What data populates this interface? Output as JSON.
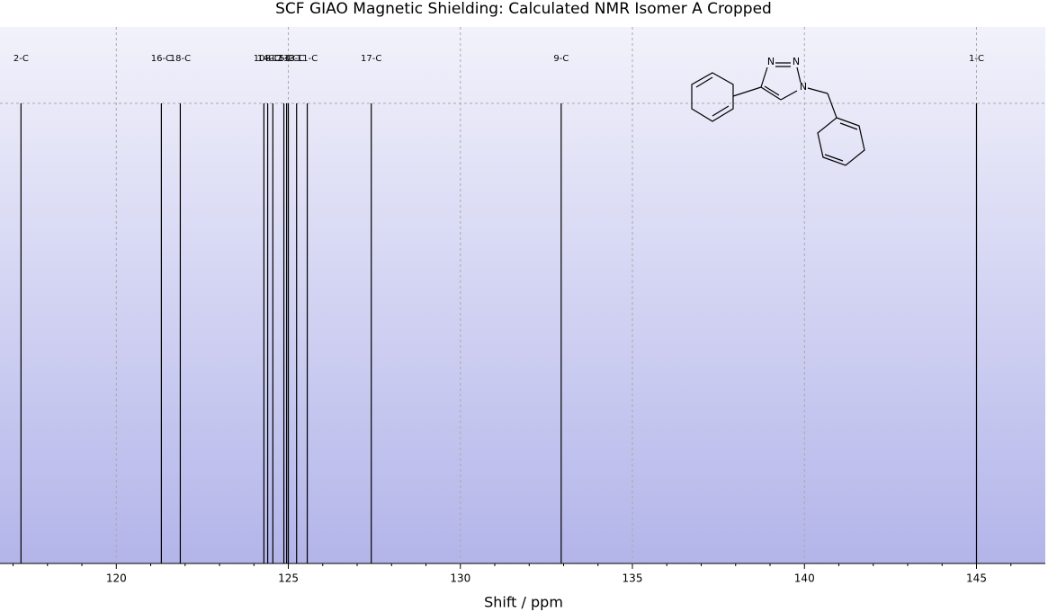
{
  "chart_data": {
    "type": "stick",
    "title": "SCF GIAO Magnetic Shielding: Calculated NMR Isomer A Cropped",
    "x_label": "Shift / ppm",
    "xlim": [
      116.62,
      147.0
    ],
    "xticks": [
      120,
      125,
      130,
      135,
      140,
      145
    ],
    "xminorticks": [
      117,
      118,
      119,
      121,
      122,
      123,
      124,
      126,
      127,
      128,
      129,
      131,
      132,
      133,
      134,
      136,
      137,
      138,
      139,
      141,
      142,
      143,
      144,
      146
    ],
    "grid": true,
    "color": "#000000",
    "peaks": [
      {
        "label": "2-C",
        "shift": 117.23
      },
      {
        "label": "16-C",
        "shift": 121.31
      },
      {
        "label": "18-C",
        "shift": 121.86
      },
      {
        "label": "10-C",
        "shift": 124.29
      },
      {
        "label": "14-C",
        "shift": 124.4
      },
      {
        "label": "8-C",
        "shift": 124.55
      },
      {
        "label": "7-C",
        "shift": 124.87
      },
      {
        "label": "5-C",
        "shift": 124.95
      },
      {
        "label": "13-C",
        "shift": 125.0
      },
      {
        "label": "3-C",
        "shift": 125.24
      },
      {
        "label": "11-C",
        "shift": 125.55
      },
      {
        "label": "17-C",
        "shift": 127.41
      },
      {
        "label": "9-C",
        "shift": 132.93
      },
      {
        "label": "1-C",
        "shift": 145.0
      }
    ],
    "structure": {
      "atoms": [
        "N",
        "N",
        "N"
      ]
    }
  }
}
